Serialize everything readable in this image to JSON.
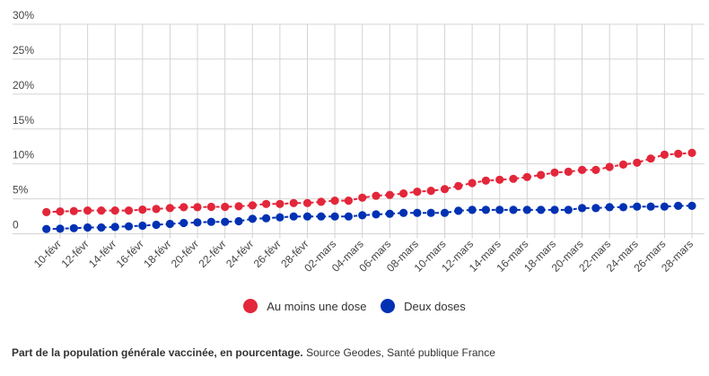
{
  "chart_data": {
    "type": "line",
    "title": "",
    "xlabel": "",
    "ylabel": "",
    "ylim": [
      0,
      30
    ],
    "yticks": [
      0,
      5,
      10,
      15,
      20,
      25,
      30
    ],
    "ytick_labels": [
      "0",
      "5%",
      "10%",
      "15%",
      "20%",
      "25%",
      "30%"
    ],
    "grid": true,
    "legend_position": "bottom-center",
    "x": [
      "09-févr",
      "10-févr",
      "11-févr",
      "12-févr",
      "13-févr",
      "14-févr",
      "15-févr",
      "16-févr",
      "17-févr",
      "18-févr",
      "19-févr",
      "20-févr",
      "21-févr",
      "22-févr",
      "23-févr",
      "24-févr",
      "25-févr",
      "26-févr",
      "27-févr",
      "28-févr",
      "01-mars",
      "02-mars",
      "03-mars",
      "04-mars",
      "05-mars",
      "06-mars",
      "07-mars",
      "08-mars",
      "09-mars",
      "10-mars",
      "11-mars",
      "12-mars",
      "13-mars",
      "14-mars",
      "15-mars",
      "16-mars",
      "17-mars",
      "18-mars",
      "19-mars",
      "20-mars",
      "21-mars",
      "22-mars",
      "23-mars",
      "24-mars",
      "25-mars",
      "26-mars",
      "27-mars",
      "28-mars"
    ],
    "xtick_labels": [
      "10-févr",
      "12-févr",
      "14-févr",
      "16-févr",
      "18-févr",
      "20-févr",
      "22-févr",
      "24-févr",
      "26-févr",
      "28-févr",
      "02-mars",
      "04-mars",
      "06-mars",
      "08-mars",
      "10-mars",
      "12-mars",
      "14-mars",
      "16-mars",
      "18-mars",
      "20-mars",
      "22-mars",
      "24-mars",
      "26-mars",
      "28-mars"
    ],
    "series": [
      {
        "name": "Au moins une dose",
        "color": "#e3263a",
        "values": [
          3.1,
          3.2,
          3.25,
          3.33,
          3.33,
          3.33,
          3.33,
          3.46,
          3.55,
          3.68,
          3.8,
          3.8,
          3.85,
          3.85,
          3.93,
          4.06,
          4.27,
          4.27,
          4.4,
          4.4,
          4.57,
          4.74,
          4.74,
          5.17,
          5.43,
          5.56,
          5.77,
          6.03,
          6.15,
          6.4,
          6.84,
          7.26,
          7.6,
          7.73,
          7.86,
          8.12,
          8.42,
          8.76,
          8.88,
          9.14,
          9.14,
          9.57,
          9.91,
          10.17,
          10.77,
          11.32,
          11.45,
          11.58
        ]
      },
      {
        "name": "Deux doses",
        "color": "#0031b3",
        "values": [
          0.68,
          0.72,
          0.8,
          0.9,
          0.9,
          0.98,
          1.07,
          1.15,
          1.28,
          1.41,
          1.54,
          1.62,
          1.71,
          1.71,
          1.8,
          2.14,
          2.22,
          2.35,
          2.48,
          2.48,
          2.48,
          2.48,
          2.48,
          2.65,
          2.78,
          2.86,
          3.0,
          3.0,
          3.0,
          3.0,
          3.29,
          3.42,
          3.42,
          3.42,
          3.42,
          3.42,
          3.42,
          3.42,
          3.42,
          3.68,
          3.68,
          3.8,
          3.8,
          3.89,
          3.89,
          3.89,
          4.0,
          4.0
        ]
      }
    ]
  },
  "legend": {
    "items": [
      {
        "label": "Au moins une dose",
        "color": "#e3263a"
      },
      {
        "label": "Deux doses",
        "color": "#0031b3"
      }
    ]
  },
  "footer": {
    "bold": "Part de la population générale vaccinée, en pourcentage.",
    "normal": " Source Geodes, Santé publique France"
  }
}
